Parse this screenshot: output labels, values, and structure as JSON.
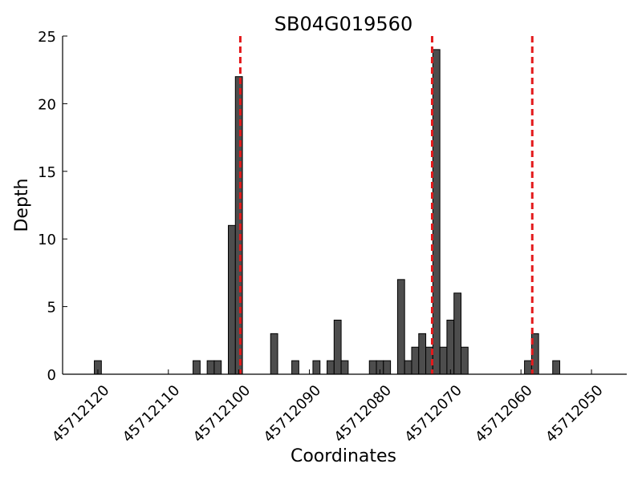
{
  "chart_data": {
    "type": "bar",
    "title": "SB04G019560",
    "xlabel": "Coordinates",
    "ylabel": "Depth",
    "xlim": [
      45712125,
      45712045
    ],
    "ylim": [
      0,
      25
    ],
    "x_axis_reversed": true,
    "xticks": [
      45712120,
      45712110,
      45712100,
      45712090,
      45712080,
      45712070,
      45712060,
      45712050
    ],
    "yticks": [
      0,
      5,
      10,
      15,
      20,
      25
    ],
    "bar_color": "#4d4d4d",
    "bar_edge_color": "#000000",
    "grid": false,
    "legend": "none",
    "series": [
      {
        "x": [
          45712120,
          45712106,
          45712104,
          45712103,
          45712101,
          45712100,
          45712095,
          45712092,
          45712089,
          45712087,
          45712086,
          45712085,
          45712081,
          45712080,
          45712079,
          45712077,
          45712076,
          45712075,
          45712074,
          45712073,
          45712072,
          45712071,
          45712070,
          45712069,
          45712068,
          45712067,
          45712059,
          45712058,
          45712055
        ],
        "values": [
          1,
          1,
          1,
          1,
          11,
          22,
          3,
          1,
          1,
          1,
          4,
          1,
          1,
          1,
          1,
          7,
          1,
          2,
          3,
          2,
          24,
          2,
          4,
          6,
          2,
          0,
          1,
          3,
          1
        ]
      }
    ],
    "vlines": {
      "x": [
        45712099.8,
        45712072.6,
        45712058.4
      ],
      "color": "#e31a1c",
      "style": "dashed"
    }
  }
}
